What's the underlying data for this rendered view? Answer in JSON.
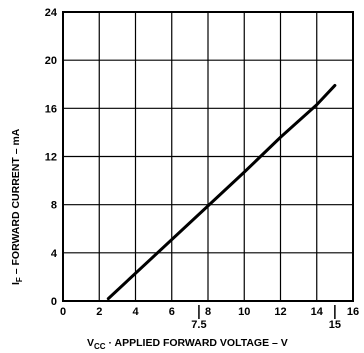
{
  "chart_data": {
    "type": "line",
    "xlabel_prefix": "V",
    "xlabel_sub": "CC",
    "xlabel_rest": " · APPLIED FORWARD VOLTAGE – V",
    "ylabel_prefix": "I",
    "ylabel_sub": "F",
    "ylabel_rest": " – FORWARD CURRENT – mA",
    "xlim": [
      0,
      16
    ],
    "ylim": [
      0,
      24
    ],
    "x_ticks": [
      0,
      2,
      4,
      6,
      8,
      10,
      12,
      14,
      16
    ],
    "y_ticks": [
      0,
      4,
      8,
      12,
      16,
      20,
      24
    ],
    "x_extra_ticks": [
      7.5,
      15
    ],
    "grid": true,
    "series": [
      {
        "x": [
          2.5,
          8.0,
          10.0,
          12.0,
          14.0,
          15.0
        ],
        "y": [
          0.2,
          7.9,
          10.7,
          13.6,
          16.3,
          17.9
        ]
      }
    ]
  }
}
